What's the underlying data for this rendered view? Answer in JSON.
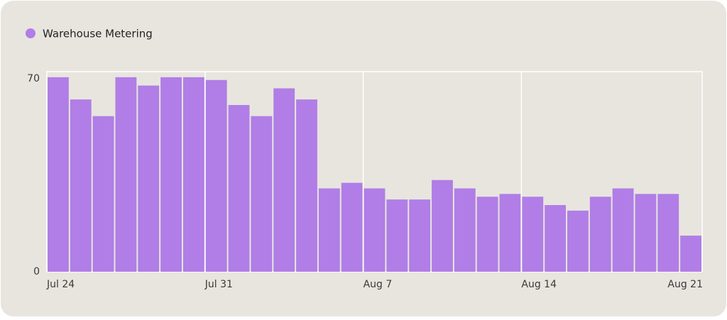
{
  "chart_data": {
    "type": "bar",
    "categories": [
      "Jul 24",
      null,
      null,
      null,
      null,
      null,
      null,
      "Jul 31",
      null,
      null,
      null,
      null,
      null,
      null,
      "Aug 7",
      null,
      null,
      null,
      null,
      null,
      null,
      "Aug 14",
      null,
      null,
      null,
      null,
      null,
      null,
      "Aug 21"
    ],
    "series": [
      {
        "name": "Warehouse Metering",
        "color": "#b07ee6",
        "values": [
          70,
          62,
          56,
          70,
          67,
          70,
          70,
          69,
          60,
          56,
          66,
          62,
          30,
          32,
          30,
          26,
          26,
          33,
          30,
          27,
          28,
          27,
          24,
          22,
          27,
          30,
          28,
          28,
          13
        ]
      }
    ],
    "ylim": [
      0,
      72
    ],
    "yticks": [
      0,
      70
    ],
    "grid": true,
    "legend": "top-left"
  }
}
